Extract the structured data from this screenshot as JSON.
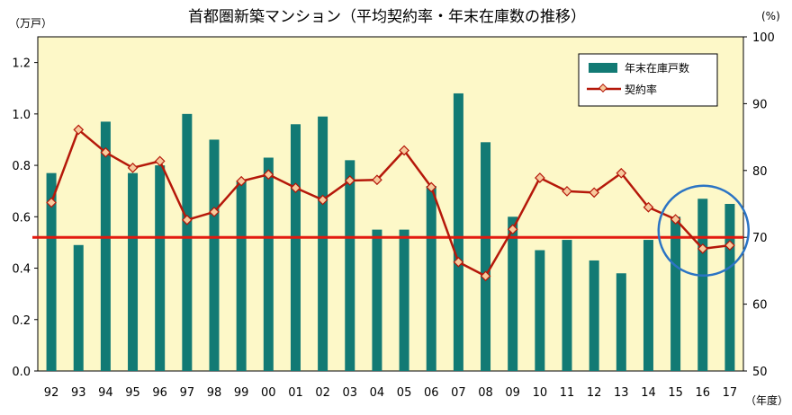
{
  "chart_data": {
    "type": "bar+line",
    "title": "首都圏新築マンション（平均契約率・年末在庫数の推移）",
    "y_left_unit": "（万戸）",
    "y_right_unit": "(%)",
    "x_unit": "（年度）",
    "categories": [
      "92",
      "93",
      "94",
      "95",
      "96",
      "97",
      "98",
      "99",
      "00",
      "01",
      "02",
      "03",
      "04",
      "05",
      "06",
      "07",
      "08",
      "09",
      "10",
      "11",
      "12",
      "13",
      "14",
      "15",
      "16",
      "17"
    ],
    "y_left_ticks": [
      "0.0",
      "0.2",
      "0.4",
      "0.6",
      "0.8",
      "1.0",
      "1.2"
    ],
    "y_right_ticks": [
      "50",
      "60",
      "70",
      "80",
      "90",
      "100"
    ],
    "ylim_left": [
      0,
      1.3
    ],
    "ylim_right": [
      50,
      100
    ],
    "series": [
      {
        "name": "年末在庫戸数",
        "type": "bar",
        "axis": "left",
        "color": "#127a74",
        "values": [
          0.77,
          0.49,
          0.97,
          0.77,
          0.8,
          1.0,
          0.9,
          0.74,
          0.83,
          0.96,
          0.99,
          0.82,
          0.55,
          0.55,
          0.72,
          1.08,
          0.89,
          0.6,
          0.47,
          0.51,
          0.43,
          0.38,
          0.51,
          0.6,
          0.67,
          0.65
        ]
      },
      {
        "name": "契約率",
        "type": "line",
        "axis": "right",
        "color": "#b5180a",
        "marker_fill": "#f7ca9c",
        "values": [
          75.2,
          86.1,
          82.7,
          80.4,
          81.4,
          72.6,
          73.8,
          78.4,
          79.4,
          77.4,
          75.6,
          78.5,
          78.6,
          83.0,
          77.5,
          66.3,
          64.2,
          71.2,
          78.9,
          76.9,
          76.7,
          79.6,
          74.5,
          72.7,
          68.3,
          68.8
        ]
      }
    ],
    "reference_line": {
      "axis": "right",
      "value": 70,
      "color": "#e31b10"
    },
    "highlight_circle": {
      "center_category": "16",
      "center_value_right": 71,
      "color": "#2b74c4"
    },
    "background": "#fdf8c8",
    "legend_position": "top-right"
  }
}
